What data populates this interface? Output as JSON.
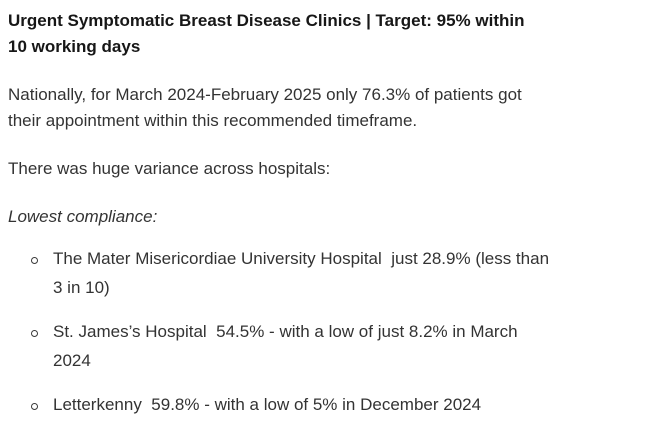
{
  "colors": {
    "background": "#ffffff",
    "heading_text": "#171717",
    "body_text": "#333333"
  },
  "heading": {
    "lines": [
      "Urgent Symptomatic Breast Disease Clinics | Target: 95% within",
      "10 working days"
    ]
  },
  "paragraphs": {
    "national": {
      "lines": [
        "Nationally, for March 2024-February 2025 only 76.3% of patients got",
        "their appointment within this recommended timeframe."
      ]
    },
    "variance": {
      "lines": [
        "There was huge variance across hospitals:"
      ]
    },
    "lowest_label": {
      "lines": [
        "Lowest compliance:"
      ]
    }
  },
  "list": {
    "bullet_style": "circle",
    "items": [
      {
        "lines": [
          "The Mater Misericordiae University Hospital  just 28.9% (less than",
          "3 in 10)"
        ]
      },
      {
        "lines": [
          "St. James’s Hospital  54.5% - with a low of just 8.2% in March",
          "2024"
        ]
      },
      {
        "lines": [
          "Letterkenny  59.8% - with a low of 5% in December 2024"
        ]
      }
    ]
  }
}
